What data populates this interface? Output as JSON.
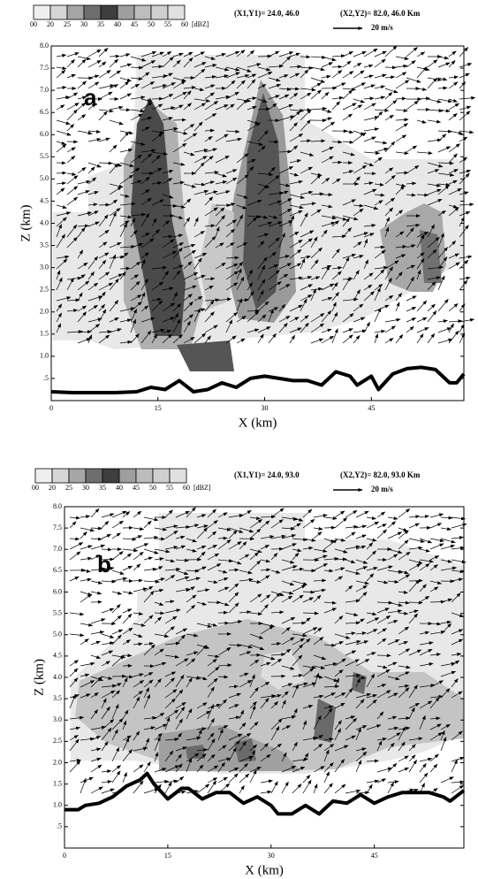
{
  "chart_data": [
    {
      "type": "line",
      "panel_label": "a",
      "annotations": [
        "(X1,Y1)= 24.0, 46.0",
        "(X2,Y2)= 82.0, 46.0 Km"
      ],
      "vector_scale": "20 m/s",
      "colorbar": {
        "labels": [
          "00",
          "20",
          "25",
          "30",
          "35",
          "40",
          "45",
          "50",
          "55",
          "60"
        ],
        "colors": [
          "#efefef",
          "#d6d6d6",
          "#a6a6a6",
          "#6e6e6e",
          "#3e3e3e",
          "#9e9e9e",
          "#bdbdbd",
          "#cfcfcf",
          "#e0e0e0"
        ],
        "unit": "[dBZ]"
      },
      "x_label": "X (km)",
      "y_label": "Z (km)",
      "color": "#000000",
      "x": [
        0,
        3,
        6,
        9,
        12,
        14,
        16,
        18,
        20,
        22,
        24,
        26,
        28,
        30,
        32,
        34,
        36,
        38,
        40,
        42,
        43,
        45,
        46,
        48,
        50,
        52,
        54,
        56,
        57,
        58
      ],
      "values": [
        0.2,
        0.18,
        0.18,
        0.18,
        0.2,
        0.3,
        0.25,
        0.45,
        0.2,
        0.25,
        0.4,
        0.3,
        0.5,
        0.55,
        0.5,
        0.45,
        0.45,
        0.35,
        0.65,
        0.55,
        0.35,
        0.55,
        0.25,
        0.6,
        0.72,
        0.75,
        0.7,
        0.4,
        0.4,
        0.6
      ],
      "xlim": [
        0,
        58
      ],
      "ylim": [
        0,
        8
      ],
      "xticks": [
        0,
        15,
        30,
        45
      ],
      "yticks": [
        {
          "value": 0.5,
          "label": ".5"
        },
        {
          "value": 1,
          "label": "1.0"
        },
        {
          "value": 1.5,
          "label": "1.5"
        },
        {
          "value": 2,
          "label": "2.0"
        },
        {
          "value": 2.5,
          "label": "2.5"
        },
        {
          "value": 3,
          "label": "3.0"
        },
        {
          "value": 3.5,
          "label": "3.5"
        },
        {
          "value": 4,
          "label": "4.0"
        },
        {
          "value": 4.5,
          "label": "4.5"
        },
        {
          "value": 5,
          "label": "5.0"
        },
        {
          "value": 5.5,
          "label": "5.5"
        },
        {
          "value": 6,
          "label": "6.0"
        },
        {
          "value": 6.5,
          "label": "6.5"
        },
        {
          "value": 7,
          "label": "7.0"
        },
        {
          "value": 7.5,
          "label": "7.5"
        },
        {
          "value": 8,
          "label": "8.0"
        }
      ]
    },
    {
      "type": "line",
      "panel_label": "b",
      "annotations": [
        "(X1,Y1)= 24.0, 93.0",
        "(X2,Y2)= 82.0, 93.0 Km"
      ],
      "vector_scale": "20 m/s",
      "colorbar": {
        "labels": [
          "00",
          "20",
          "25",
          "30",
          "35",
          "40",
          "45",
          "50",
          "55",
          "60"
        ],
        "colors": [
          "#efefef",
          "#d6d6d6",
          "#a6a6a6",
          "#6e6e6e",
          "#3e3e3e",
          "#9e9e9e",
          "#bdbdbd",
          "#cfcfcf",
          "#e0e0e0"
        ],
        "unit": "[dBZ]"
      },
      "x_label": "X (km)",
      "y_label": "Z (km)",
      "color": "#000000",
      "x": [
        0,
        2,
        3,
        5,
        7,
        9,
        11,
        12,
        13,
        15,
        17,
        18,
        20,
        22,
        24,
        26,
        28,
        30,
        31,
        33,
        35,
        37,
        39,
        41,
        43,
        45,
        47,
        49,
        51,
        53,
        55,
        56,
        58
      ],
      "values": [
        0.9,
        0.9,
        1.0,
        1.05,
        1.2,
        1.45,
        1.6,
        1.75,
        1.5,
        1.15,
        1.4,
        1.4,
        1.15,
        1.3,
        1.3,
        1.05,
        1.2,
        1.0,
        0.8,
        0.8,
        1.0,
        0.8,
        1.1,
        1.05,
        1.25,
        1.05,
        1.2,
        1.3,
        1.3,
        1.3,
        1.2,
        1.1,
        1.35
      ],
      "xlim": [
        0,
        58
      ],
      "ylim": [
        0,
        8
      ],
      "xticks": [
        0,
        15,
        30,
        45
      ],
      "yticks": [
        {
          "value": 0.5,
          "label": ".5"
        },
        {
          "value": 1,
          "label": "1.0"
        },
        {
          "value": 1.5,
          "label": "1.5"
        },
        {
          "value": 2,
          "label": "2.0"
        },
        {
          "value": 2.5,
          "label": "2.5"
        },
        {
          "value": 3,
          "label": "3.0"
        },
        {
          "value": 3.5,
          "label": "3.5"
        },
        {
          "value": 4,
          "label": "4.0"
        },
        {
          "value": 4.5,
          "label": "4.5"
        },
        {
          "value": 5,
          "label": "5.0"
        },
        {
          "value": 5.5,
          "label": "5.5"
        },
        {
          "value": 6,
          "label": "6.0"
        },
        {
          "value": 6.5,
          "label": "6.5"
        },
        {
          "value": 7,
          "label": "7.0"
        },
        {
          "value": 7.5,
          "label": "7.5"
        },
        {
          "value": 8,
          "label": "8.0"
        }
      ]
    }
  ]
}
